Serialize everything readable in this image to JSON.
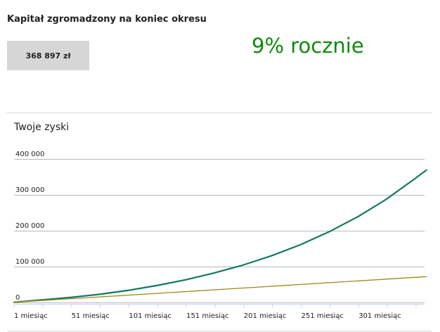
{
  "summary": {
    "title": "Kapitał zgromadzony na koniec okresu",
    "capital_value": "368 897 zł",
    "rate_label": "9% rocznie"
  },
  "colors": {
    "rate_text": "#118a0c",
    "series_capital": "#137860",
    "series_deposits": "#a08a1c",
    "gridline": "#b8b8b8"
  },
  "chart_data": {
    "type": "line",
    "title": "Twoje zyski",
    "x_tick_labels": [
      "1 miesiąc",
      "51 miesiąc",
      "101 miesiąc",
      "151 miesiąc",
      "201 miesiąc",
      "251 miesiąc",
      "301 miesiąc"
    ],
    "x_range": [
      1,
      360
    ],
    "y_tick_labels": [
      "0",
      "100 000",
      "200 000",
      "300 000",
      "400 000"
    ],
    "y_ticks": [
      0,
      100000,
      200000,
      300000,
      400000
    ],
    "ylim": [
      0,
      400000
    ],
    "grid": true,
    "legend": "none",
    "series": [
      {
        "color": "#137860",
        "x": [
          1,
          25,
          50,
          75,
          100,
          125,
          150,
          175,
          200,
          225,
          250,
          275,
          300,
          325,
          350,
          360
        ],
        "y": [
          500,
          7000,
          14000,
          22500,
          33500,
          47000,
          63000,
          82000,
          104000,
          130000,
          160500,
          196500,
          238500,
          287500,
          345000,
          368897
        ]
      },
      {
        "color": "#a08a1c",
        "x": [
          1,
          360
        ],
        "y": [
          500,
          72000
        ]
      }
    ]
  }
}
